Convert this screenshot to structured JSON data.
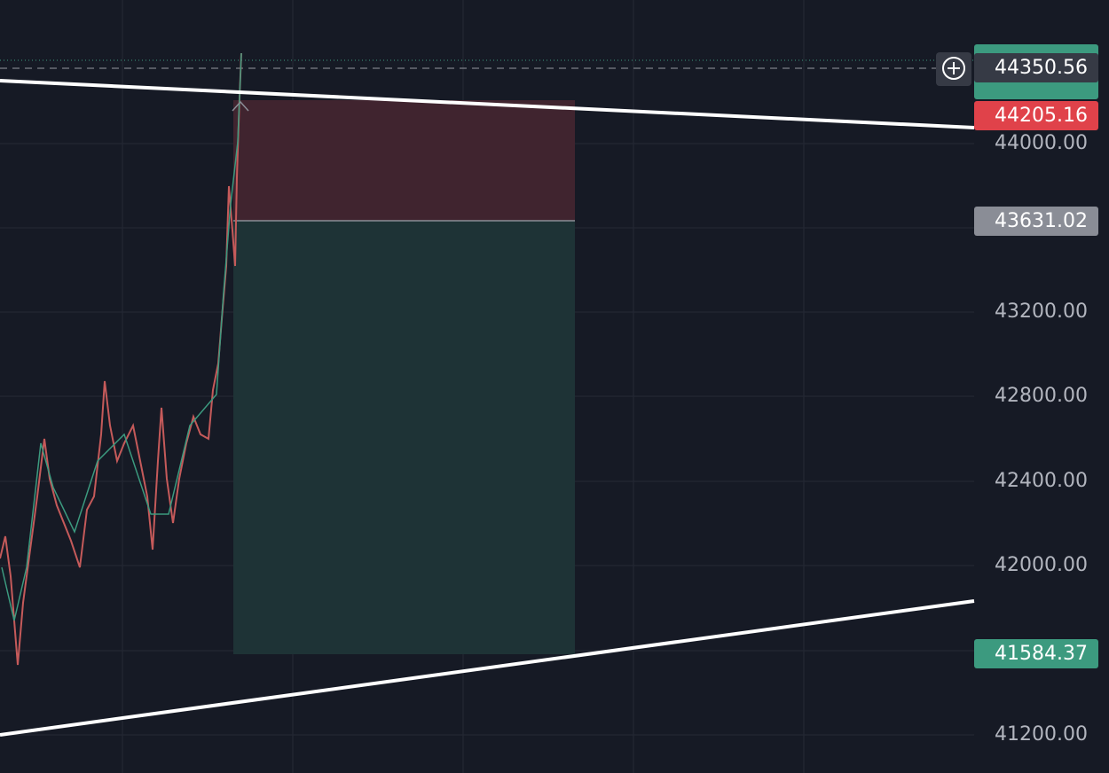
{
  "price_axis": {
    "labels": [
      "44000.00",
      "43200.00",
      "42800.00",
      "42400.00",
      "42000.00",
      "41200.00"
    ]
  },
  "price_tags": {
    "last_price": "44350.56",
    "stop": "44205.16",
    "entry": "43631.02",
    "target": "41584.37"
  }
}
